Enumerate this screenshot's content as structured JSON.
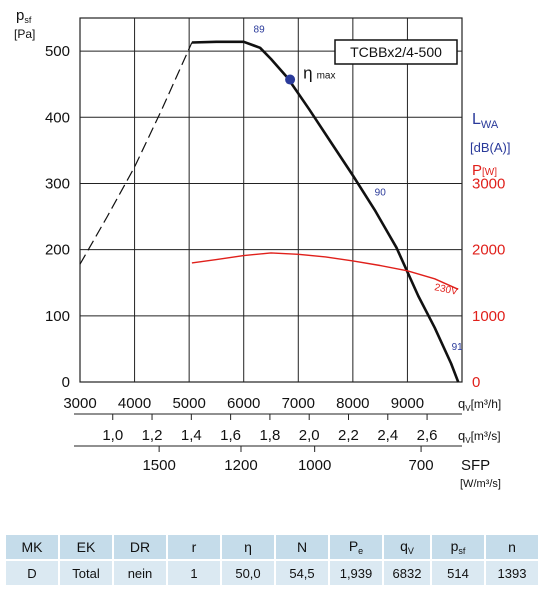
{
  "chart_data": {
    "type": "line",
    "model_label": "TCBBx2/4-500",
    "y_axis": {
      "label_main": "p",
      "label_sub": "sf",
      "unit": "[Pa]",
      "range": [
        0,
        550
      ],
      "ticks": [
        "0",
        "100",
        "200",
        "300",
        "400",
        "500"
      ]
    },
    "right_axis": {
      "lwa_label_main": "L",
      "lwa_label_sub": "WA",
      "lwa_unit": "[dB(A)]",
      "power_label_main": "P",
      "power_label_unit": "[W]",
      "range": [
        0,
        5500
      ],
      "ticks": [
        "0",
        "1000",
        "2000",
        "3000"
      ]
    },
    "x_axis_m3h": {
      "label_main": "q",
      "label_sub": "V",
      "unit": "[m³/h]",
      "range": [
        3000,
        10000
      ],
      "ticks": [
        "3000",
        "4000",
        "5000",
        "6000",
        "7000",
        "8000",
        "9000"
      ]
    },
    "x_axis_m3s": {
      "label_main": "q",
      "label_sub": "V",
      "unit": "[m³/s]",
      "ticks": [
        "1,0",
        "1,2",
        "1,4",
        "1,6",
        "1,8",
        "2,0",
        "2,2",
        "2,4",
        "2,6"
      ]
    },
    "x_axis_sfp": {
      "label": "SFP",
      "unit": "[W/m³/s]",
      "ticks": [
        "1500",
        "1200",
        "1000",
        "700"
      ]
    },
    "series": [
      {
        "name": "",
        "style": "dashed",
        "color": "#111111",
        "x": [
          3000,
          3500,
          4000,
          4500,
          5050
        ],
        "y": [
          178,
          250,
          325,
          412,
          513
        ]
      },
      {
        "name": "",
        "style": "solid",
        "color": "#111111",
        "x": [
          5050,
          5500,
          6000,
          6300,
          6500,
          6800,
          7200,
          7600,
          8000,
          8400,
          8800,
          9200,
          9500,
          9800,
          9930
        ],
        "y": [
          513,
          514,
          514,
          505,
          488,
          460,
          412,
          362,
          312,
          260,
          203,
          130,
          82,
          28,
          0
        ]
      },
      {
        "name": "230V",
        "style": "solid",
        "color": "#e0201b",
        "axis": "right",
        "x": [
          5050,
          5500,
          6000,
          6500,
          7000,
          7500,
          8000,
          8500,
          9000,
          9500,
          9930
        ],
        "y": [
          1800,
          1850,
          1910,
          1950,
          1930,
          1890,
          1830,
          1760,
          1680,
          1560,
          1400
        ]
      }
    ],
    "annotations": {
      "eta_symbol": "η",
      "eta_sub": "max",
      "eta_point": {
        "x": 6850,
        "y": 457
      },
      "lwa_values": [
        {
          "text": "89",
          "x": 6180,
          "y": 528
        },
        {
          "text": "90",
          "x": 8400,
          "y": 282
        },
        {
          "text": "91",
          "x": 9810,
          "y": 48
        }
      ],
      "voltage_label": "230V"
    },
    "grid": true
  },
  "table": {
    "headers": [
      {
        "main": "MK",
        "sub": ""
      },
      {
        "main": "EK",
        "sub": ""
      },
      {
        "main": "DR",
        "sub": ""
      },
      {
        "main": "r",
        "sub": ""
      },
      {
        "main": "η",
        "sub": ""
      },
      {
        "main": "N",
        "sub": ""
      },
      {
        "main": "P",
        "sub": "e"
      },
      {
        "main": "q",
        "sub": "V"
      },
      {
        "main": "p",
        "sub": "sf"
      },
      {
        "main": "n",
        "sub": ""
      }
    ],
    "row": [
      "D",
      "Total",
      "nein",
      "1",
      "50,0",
      "54,5",
      "1,939",
      "6832",
      "514",
      "1393"
    ]
  }
}
